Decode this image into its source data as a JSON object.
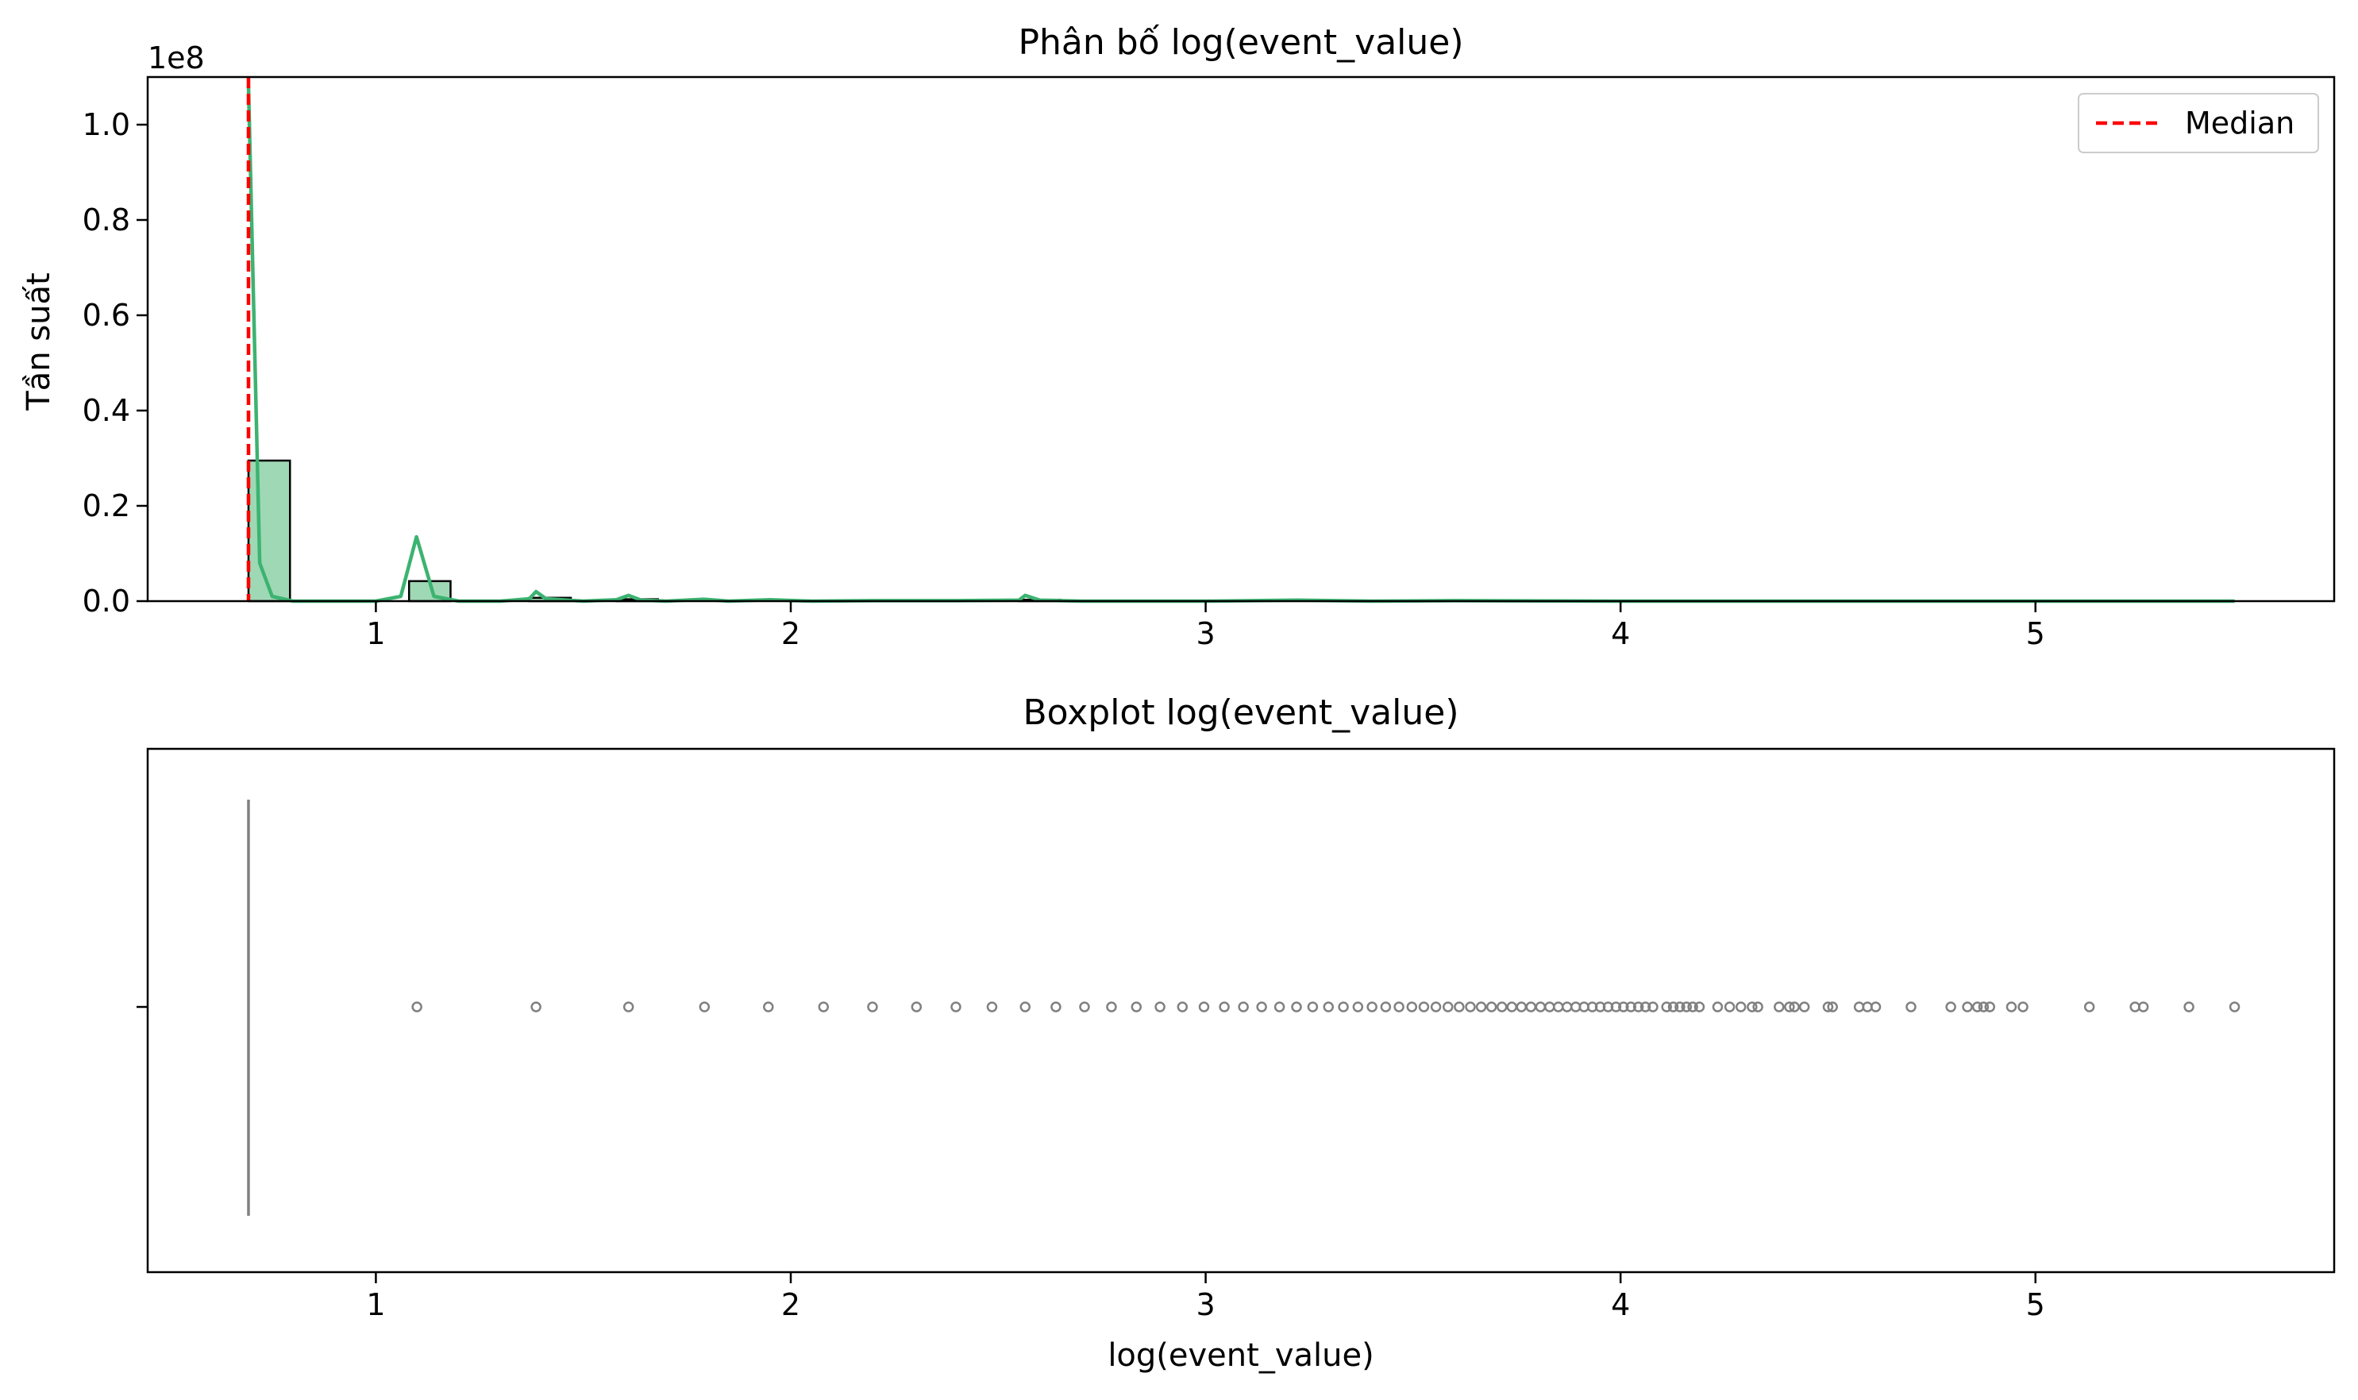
{
  "chart_data": [
    {
      "type": "histogram",
      "title": "Phân bố log(event_value)",
      "xlabel": "",
      "ylabel": "Tần suất",
      "y_offset_text": "1e8",
      "xlim": [
        0.45,
        5.72
      ],
      "ylim": [
        0,
        1.1
      ],
      "x_ticks": [
        1,
        2,
        3,
        4,
        5
      ],
      "y_ticks": [
        0.0,
        0.2,
        0.4,
        0.6,
        0.8,
        1.0
      ],
      "x_tick_labels": [
        "1",
        "2",
        "3",
        "4",
        "5"
      ],
      "y_tick_labels": [
        "0.0",
        "0.2",
        "0.4",
        "0.6",
        "0.8",
        "1.0"
      ],
      "bin_width": 0.1,
      "bars": [
        {
          "x0": 0.693,
          "x1": 0.793,
          "value": 0.295
        },
        {
          "x0": 1.08,
          "x1": 1.18,
          "value": 0.042
        },
        {
          "x0": 1.37,
          "x1": 1.47,
          "value": 0.007
        },
        {
          "x0": 1.58,
          "x1": 1.68,
          "value": 0.004
        },
        {
          "x0": 2.55,
          "x1": 2.65,
          "value": 0.003
        }
      ],
      "kde": {
        "color": "#3cb371",
        "x": [
          0.693,
          0.72,
          0.75,
          0.8,
          0.9,
          1.0,
          1.06,
          1.098,
          1.14,
          1.2,
          1.3,
          1.37,
          1.386,
          1.41,
          1.5,
          1.58,
          1.609,
          1.64,
          1.7,
          1.79,
          1.85,
          1.95,
          2.05,
          2.2,
          2.4,
          2.55,
          2.565,
          2.6,
          2.7,
          3.0,
          3.22,
          3.4,
          3.6,
          4.0,
          4.5,
          5.0,
          5.48
        ],
        "y": [
          1.08,
          0.08,
          0.01,
          0.0,
          0.0,
          0.0,
          0.01,
          0.135,
          0.01,
          0.0,
          0.0,
          0.005,
          0.02,
          0.005,
          0.0,
          0.003,
          0.012,
          0.002,
          0.0,
          0.004,
          0.0,
          0.003,
          0.0,
          0.001,
          0.001,
          0.002,
          0.012,
          0.002,
          0.0,
          0.0,
          0.002,
          0.0,
          0.001,
          0.0,
          0.0,
          0.0,
          0.0
        ]
      },
      "median": {
        "value": 0.693,
        "label": "Median",
        "color": "#ff0000"
      },
      "legend": {
        "placement": "top-right",
        "entries": [
          "Median"
        ]
      },
      "bar_color": "#9fd8b5",
      "grid": false
    },
    {
      "type": "boxplot",
      "title": "Boxplot log(event_value)",
      "xlabel": "log(event_value)",
      "ylabel": "",
      "xlim": [
        0.45,
        5.72
      ],
      "x_ticks": [
        1,
        2,
        3,
        4,
        5
      ],
      "x_tick_labels": [
        "1",
        "2",
        "3",
        "4",
        "5"
      ],
      "box": {
        "q1": 0.693,
        "median": 0.693,
        "q3": 0.693,
        "whisker_low": 0.693,
        "whisker_high": 0.693
      },
      "outliers": [
        1.099,
        1.386,
        1.609,
        1.792,
        1.946,
        2.079,
        2.197,
        2.303,
        2.398,
        2.485,
        2.565,
        2.639,
        2.708,
        2.773,
        2.833,
        2.89,
        2.944,
        2.996,
        3.045,
        3.091,
        3.135,
        3.178,
        3.219,
        3.258,
        3.296,
        3.332,
        3.367,
        3.401,
        3.434,
        3.466,
        3.497,
        3.526,
        3.555,
        3.584,
        3.611,
        3.638,
        3.664,
        3.689,
        3.714,
        3.738,
        3.761,
        3.784,
        3.807,
        3.829,
        3.85,
        3.871,
        3.892,
        3.912,
        3.932,
        3.951,
        3.97,
        3.989,
        4.007,
        4.025,
        4.043,
        4.06,
        4.078,
        4.111,
        4.127,
        4.143,
        4.159,
        4.174,
        4.19,
        4.234,
        4.263,
        4.29,
        4.317,
        4.331,
        4.382,
        4.407,
        4.419,
        4.443,
        4.5,
        4.511,
        4.575,
        4.595,
        4.615,
        4.7,
        4.796,
        4.836,
        4.86,
        4.875,
        4.89,
        4.942,
        4.97,
        5.13,
        5.24,
        5.26,
        5.37,
        5.48
      ],
      "color": "#808080",
      "grid": false
    }
  ],
  "colors": {
    "kde": "#3cb371",
    "bar_fill": "#9fd8b5",
    "median": "#ff0000",
    "box": "#808080"
  }
}
